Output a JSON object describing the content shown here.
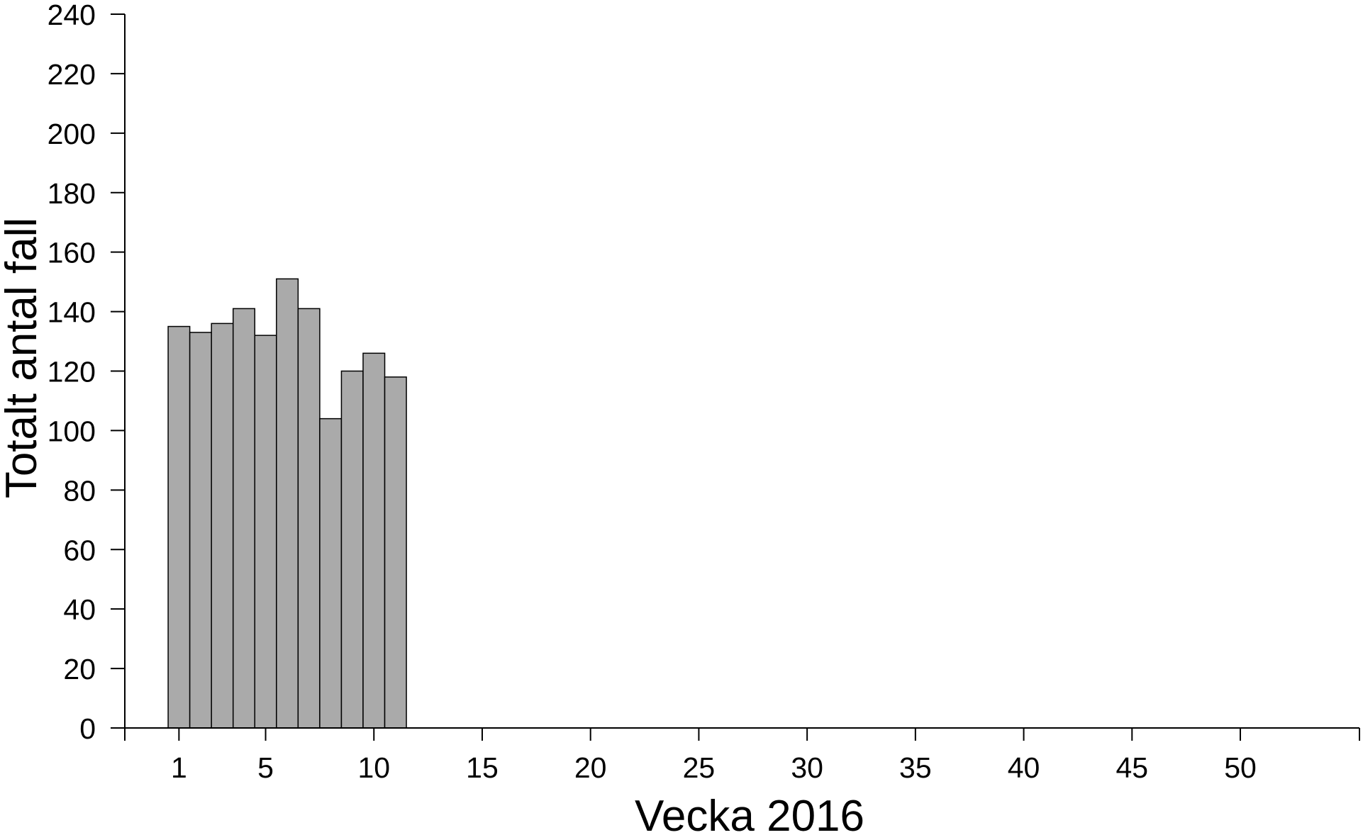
{
  "chart_data": {
    "type": "bar",
    "title": "",
    "xlabel": "Vecka 2016",
    "ylabel": "Totalt antal fall",
    "categories": [
      1,
      2,
      3,
      4,
      5,
      6,
      7,
      8,
      9,
      10,
      11
    ],
    "values": [
      135,
      133,
      136,
      141,
      132,
      151,
      141,
      104,
      120,
      126,
      118
    ],
    "xlim": [
      -1.5,
      55.5
    ],
    "ylim": [
      0,
      240
    ],
    "x_ticks": [
      1,
      5,
      10,
      15,
      20,
      25,
      30,
      35,
      40,
      45,
      50
    ],
    "x_tick_marks": [
      -1.5,
      55.5
    ],
    "y_ticks": [
      0,
      20,
      40,
      60,
      80,
      100,
      120,
      140,
      160,
      180,
      200,
      220,
      240
    ],
    "grid": false,
    "legend": "none",
    "bar_color": "#aaaaaa",
    "bar_edge_color": "#000000"
  }
}
